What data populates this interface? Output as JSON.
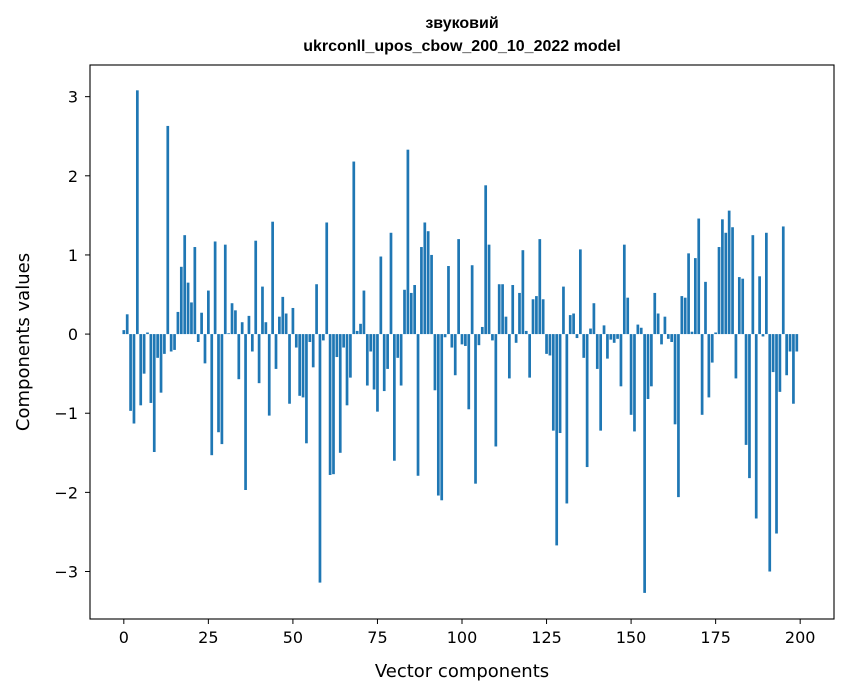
{
  "chart_data": {
    "type": "bar",
    "title": "звуковий",
    "subtitle": "ukrconll_upos_cbow_200_10_2022 model",
    "xlabel": "Vector components",
    "ylabel": "Components values",
    "xlim": [
      -10,
      210
    ],
    "ylim": [
      -3.6,
      3.4
    ],
    "xticks": [
      0,
      25,
      50,
      75,
      100,
      125,
      150,
      175,
      200
    ],
    "yticks": [
      -3,
      -2,
      -1,
      0,
      1,
      2,
      3
    ],
    "ytick_labels": [
      "−3",
      "−2",
      "−1",
      "0",
      "1",
      "2",
      "3"
    ],
    "color": "#1f77b4",
    "grid": false,
    "values": [
      0.05,
      0.25,
      -0.97,
      -1.13,
      3.08,
      -0.9,
      -0.5,
      0.02,
      -0.87,
      -1.49,
      -0.3,
      -0.74,
      -0.25,
      2.63,
      -0.22,
      -0.2,
      0.28,
      0.85,
      1.25,
      0.65,
      0.4,
      1.1,
      -0.1,
      0.27,
      -0.37,
      0.55,
      -1.53,
      1.17,
      -1.24,
      -1.39,
      1.13,
      0.01,
      0.39,
      0.3,
      -0.57,
      0.15,
      -1.97,
      0.23,
      -0.22,
      1.18,
      -0.62,
      0.6,
      0.15,
      -1.03,
      1.42,
      -0.44,
      0.22,
      0.47,
      0.26,
      -0.88,
      0.33,
      -0.17,
      -0.78,
      -0.8,
      -1.38,
      -0.1,
      -0.42,
      0.63,
      -3.14,
      -0.08,
      1.41,
      -1.78,
      -1.77,
      -0.29,
      -1.5,
      -0.17,
      -0.9,
      -0.55,
      2.18,
      0.04,
      0.13,
      0.55,
      -0.65,
      -0.22,
      -0.7,
      -0.98,
      0.98,
      -0.72,
      -0.44,
      1.28,
      -1.6,
      -0.3,
      -0.65,
      0.56,
      2.33,
      0.52,
      0.62,
      -1.79,
      1.1,
      1.41,
      1.3,
      1.0,
      -0.71,
      -2.04,
      -2.1,
      -0.04,
      0.86,
      -0.17,
      -0.52,
      1.2,
      -0.13,
      -0.15,
      -0.95,
      0.87,
      -1.89,
      -0.14,
      0.09,
      1.88,
      1.13,
      -0.08,
      -1.42,
      0.63,
      0.63,
      0.22,
      -0.56,
      0.62,
      -0.11,
      0.52,
      1.06,
      0.04,
      -0.55,
      0.44,
      0.48,
      1.2,
      0.44,
      -0.25,
      -0.27,
      -1.22,
      -2.67,
      -1.25,
      0.6,
      -2.14,
      0.24,
      0.26,
      -0.05,
      1.07,
      -0.3,
      -1.68,
      0.07,
      0.39,
      -0.44,
      -1.22,
      0.11,
      -0.31,
      -0.07,
      -0.11,
      -0.06,
      -0.66,
      1.13,
      0.46,
      -1.02,
      -1.23,
      0.12,
      0.08,
      -3.27,
      -0.82,
      -0.66,
      0.52,
      0.26,
      -0.13,
      0.22,
      -0.06,
      -0.1,
      -1.14,
      -2.06,
      0.48,
      0.46,
      1.02,
      0.03,
      0.96,
      1.46,
      -1.02,
      0.66,
      -0.8,
      -0.36,
      0.02,
      1.1,
      1.45,
      1.28,
      1.56,
      1.35,
      -0.56,
      0.72,
      0.7,
      -1.4,
      -1.82,
      1.25,
      -2.33,
      0.73,
      -0.03,
      1.28,
      -3.0,
      -0.48,
      -2.52,
      -0.73,
      1.36,
      -0.52,
      -0.22,
      -0.88,
      -0.22
    ]
  }
}
